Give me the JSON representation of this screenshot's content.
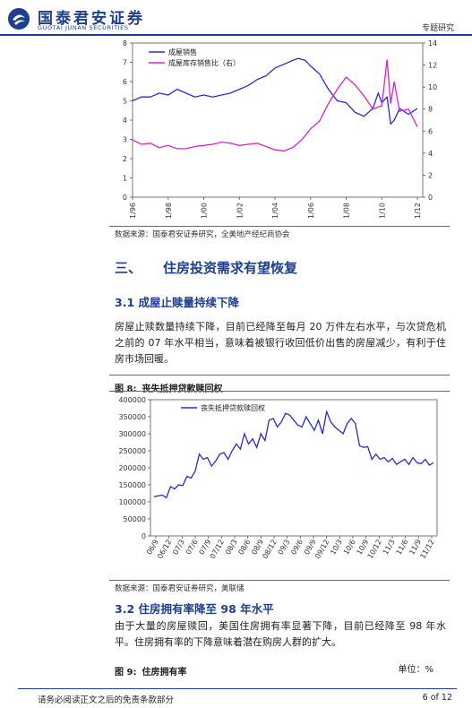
{
  "header": {
    "logo_cn": "国泰君安证券",
    "logo_en": "GUOTAI JUNAN SECURITIES",
    "report_type": "专题研究"
  },
  "chart1": {
    "chart_data": {
      "type": "line",
      "x_ticks": [
        "1/96",
        "1/98",
        "1/00",
        "1/02",
        "1/04",
        "1/06",
        "1/08",
        "1/10",
        "1/12"
      ],
      "y_left": {
        "min": 0,
        "max": 8,
        "ticks": [
          0,
          1,
          2,
          3,
          4,
          5,
          6,
          7,
          8
        ]
      },
      "y_right": {
        "min": 0,
        "max": 14,
        "ticks": [
          0,
          2,
          4,
          6,
          8,
          10,
          12,
          14
        ]
      },
      "series": [
        {
          "name": "成屋销售",
          "axis": "left",
          "color": "#2a2ad6",
          "x": [
            1996,
            1996.5,
            1997,
            1997.5,
            1998,
            1998.5,
            1999,
            1999.5,
            2000,
            2000.5,
            2001,
            2001.5,
            2002,
            2002.5,
            2003,
            2003.5,
            2004,
            2004.5,
            2005,
            2005.3,
            2005.7,
            2006,
            2006.5,
            2007,
            2007.5,
            2008,
            2008.5,
            2009,
            2009.5,
            2009.8,
            2010,
            2010.3,
            2010.5,
            2010.7,
            2011,
            2011.5,
            2012
          ],
          "y": [
            5.0,
            5.2,
            5.2,
            5.4,
            5.3,
            5.6,
            5.4,
            5.2,
            5.3,
            5.2,
            5.3,
            5.4,
            5.6,
            5.8,
            6.1,
            6.3,
            6.7,
            6.9,
            7.1,
            7.2,
            7.1,
            6.8,
            6.4,
            5.6,
            5.0,
            4.9,
            4.4,
            4.2,
            4.6,
            5.4,
            4.9,
            5.2,
            3.8,
            4.0,
            4.6,
            4.3,
            4.6
          ]
        },
        {
          "name": "成屋库存销售比（右）",
          "axis": "right",
          "color": "#e020d0",
          "x": [
            1996,
            1996.5,
            1997,
            1997.5,
            1998,
            1998.5,
            1999,
            1999.5,
            2000,
            2000.5,
            2001,
            2001.5,
            2002,
            2002.5,
            2003,
            2003.5,
            2004,
            2004.5,
            2005,
            2005.5,
            2006,
            2006.5,
            2007,
            2007.5,
            2008,
            2008.5,
            2009,
            2009.5,
            2010,
            2010.3,
            2010.5,
            2010.7,
            2011,
            2011.5,
            2012
          ],
          "y": [
            5.2,
            4.8,
            4.9,
            4.5,
            4.7,
            4.4,
            4.4,
            4.6,
            4.7,
            4.8,
            5.0,
            4.9,
            4.7,
            4.8,
            4.9,
            4.6,
            4.3,
            4.2,
            4.5,
            5.2,
            6.2,
            6.9,
            8.5,
            9.8,
            10.9,
            10.2,
            9.2,
            8.0,
            8.3,
            12.5,
            8.5,
            10.5,
            7.8,
            8.0,
            6.4
          ]
        }
      ]
    },
    "legend": [
      "成屋销售",
      "成屋库存销售比（右）"
    ],
    "source": "数据来源：国泰君安证券研究，全美地产经纪商协会"
  },
  "section3": {
    "number": "三、",
    "title": "住房投资需求有望恢复"
  },
  "section31": {
    "number": "3.1",
    "title": "成屋止赎量持续下降",
    "body": "房屋止赎数量持续下降，目前已经降至每月 20 万件左右水平，与次贷危机之前的 07 年水平相当，意味着被银行收回低价出售的房屋减少，有利于住房市场回暖。"
  },
  "figure8": {
    "label": "图 8:",
    "title": "丧失抵押贷款赎回权",
    "chart_data": {
      "type": "line",
      "x_ticks": [
        "06/9",
        "06/12",
        "07/3",
        "07/6",
        "07/9",
        "07/12",
        "08/3",
        "08/6",
        "08/9",
        "08/12",
        "09/3",
        "09/6",
        "09/9",
        "09/12",
        "10/3",
        "10/6",
        "10/9",
        "10/12",
        "11/3",
        "11/6",
        "11/9",
        "11/12"
      ],
      "y_axis": {
        "min": 0,
        "max": 400000,
        "ticks": [
          0,
          50000,
          100000,
          150000,
          200000,
          250000,
          300000,
          350000,
          400000
        ]
      },
      "series": [
        {
          "name": "丧失抵押贷款赎回权",
          "color": "#2a2ad6",
          "y": [
            115000,
            118000,
            120000,
            112000,
            145000,
            138000,
            150000,
            148000,
            175000,
            170000,
            190000,
            240000,
            225000,
            230000,
            205000,
            220000,
            240000,
            245000,
            225000,
            250000,
            270000,
            255000,
            300000,
            270000,
            285000,
            260000,
            300000,
            280000,
            340000,
            345000,
            320000,
            335000,
            360000,
            355000,
            340000,
            325000,
            320000,
            350000,
            330000,
            310000,
            340000,
            300000,
            365000,
            335000,
            320000,
            310000,
            300000,
            330000,
            345000,
            330000,
            265000,
            260000,
            262000,
            225000,
            240000,
            225000,
            230000,
            218000,
            228000,
            210000,
            218000,
            225000,
            210000,
            230000,
            215000,
            212000,
            225000,
            208000,
            215000
          ]
        }
      ]
    },
    "source": "数据来源：国泰君安证券研究，美联储"
  },
  "section32": {
    "number": "3.2",
    "title": "住房拥有率降至 98 年水平",
    "body": "由于大量的房屋赎回，美国住房拥有率显著下降，目前已经降至 98 年水平。住房拥有率的下降意味着潜在购房人群的扩大。"
  },
  "figure9": {
    "label": "图 9:",
    "title": "住房拥有率",
    "unit": "单位：%"
  },
  "footer": {
    "disclaimer": "请务必阅读正文之后的免责条款部分",
    "page": "6 of 12"
  }
}
